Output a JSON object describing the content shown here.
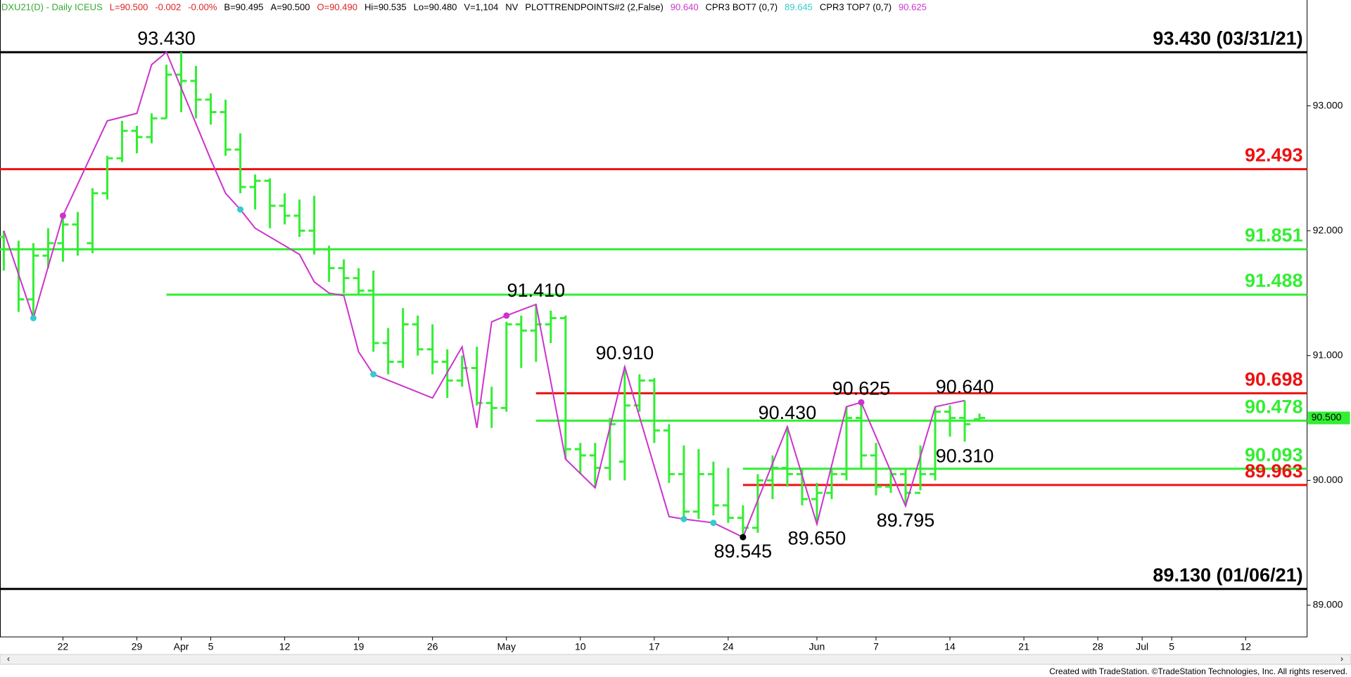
{
  "chart_data": {
    "type": "ohlc",
    "header": [
      {
        "text": "DXU21(D) - Daily  ICEUS",
        "color": "#33aa33"
      },
      {
        "text": "L=90.500",
        "color": "#dd2222"
      },
      {
        "text": "-0.002",
        "color": "#dd2222"
      },
      {
        "text": "-0.00%",
        "color": "#dd2222"
      },
      {
        "text": "B=90.495",
        "color": "#000000"
      },
      {
        "text": "A=90.500",
        "color": "#000000"
      },
      {
        "text": "O=90.490",
        "color": "#dd2222"
      },
      {
        "text": "Hi=90.535",
        "color": "#000000"
      },
      {
        "text": "Lo=90.480",
        "color": "#000000"
      },
      {
        "text": "V=1,104",
        "color": "#000000"
      },
      {
        "text": "NV",
        "color": "#000000"
      },
      {
        "text": "PLOTTRENDPOINTS#2 (2,False)",
        "color": "#000000"
      },
      {
        "text": "90.640",
        "color": "#cc33cc"
      },
      {
        "text": "CPR3 BOT7 (0,7)",
        "color": "#000000"
      },
      {
        "text": "89.645",
        "color": "#33cccc"
      },
      {
        "text": "CPR3 TOP7 (0,7)",
        "color": "#000000"
      },
      {
        "text": "90.625",
        "color": "#cc33cc"
      }
    ],
    "footer": "Created with TradeStation. ©TradeStation Technologies, Inc. All rights reserved.",
    "categories": [
      null,
      null,
      null,
      null,
      "22",
      null,
      null,
      null,
      null,
      "29",
      null,
      null,
      "Apr",
      null,
      "5",
      null,
      null,
      null,
      null,
      "12",
      null,
      null,
      null,
      null,
      "19",
      null,
      null,
      null,
      null,
      "26",
      null,
      null,
      null,
      null,
      "May",
      null,
      null,
      null,
      null,
      "10",
      null,
      null,
      null,
      null,
      "17",
      null,
      null,
      null,
      null,
      "24",
      null,
      null,
      null,
      null,
      null,
      "Jun",
      null,
      null,
      null,
      "7",
      null,
      null,
      null,
      null,
      "14",
      null,
      null,
      null,
      null,
      "21",
      null,
      null,
      null,
      null,
      "28",
      null,
      null,
      "Jul",
      null,
      "5",
      null,
      null,
      null,
      null,
      "12",
      null,
      null,
      null,
      null
    ],
    "open": [
      91.95,
      91.85,
      91.45,
      91.8,
      91.9,
      92.05,
      91.9,
      92.3,
      92.58,
      92.8,
      92.75,
      92.9,
      93.25,
      93.2,
      93.05,
      92.95,
      92.65,
      92.35,
      92.4,
      92.2,
      92.12,
      92.0,
      91.85,
      91.7,
      91.62,
      91.52,
      91.1,
      90.95,
      91.25,
      91.05,
      90.95,
      90.8,
      90.9,
      90.62,
      90.58,
      91.25,
      91.2,
      91.25,
      91.3,
      90.25,
      90.2,
      90.1,
      90.15,
      90.6,
      90.8,
      90.4,
      90.05,
      89.75,
      90.05,
      89.8,
      89.7,
      89.62,
      90.0,
      90.1,
      90.05,
      89.85,
      89.9,
      90.05,
      90.5,
      90.2,
      89.95,
      90.05,
      89.9,
      90.05,
      90.55,
      90.5,
      90.49,
      null,
      null,
      null,
      null,
      null,
      null,
      null,
      null,
      null,
      null,
      null,
      null,
      null,
      null,
      null,
      null,
      null,
      null,
      null,
      null,
      null,
      null
    ],
    "high": [
      92.0,
      91.92,
      91.9,
      92.02,
      92.12,
      92.15,
      92.34,
      92.6,
      92.88,
      92.84,
      92.94,
      93.33,
      93.43,
      93.32,
      93.1,
      93.05,
      92.78,
      92.45,
      92.42,
      92.3,
      92.25,
      92.28,
      91.88,
      91.77,
      91.7,
      91.68,
      91.22,
      91.38,
      91.32,
      91.25,
      91.05,
      91.0,
      91.07,
      90.75,
      91.27,
      91.32,
      91.41,
      91.36,
      91.32,
      90.3,
      90.3,
      90.5,
      90.91,
      90.85,
      90.82,
      90.45,
      90.28,
      90.25,
      90.15,
      90.1,
      89.8,
      90.05,
      90.2,
      90.43,
      90.1,
      89.98,
      90.1,
      90.59,
      90.625,
      90.3,
      90.1,
      90.1,
      90.28,
      90.59,
      90.6,
      90.64,
      90.535,
      null,
      null,
      null,
      null,
      null,
      null,
      null,
      null,
      null,
      null,
      null,
      null,
      null,
      null,
      null,
      null,
      null,
      null,
      null,
      null,
      null,
      null
    ],
    "low": [
      91.68,
      91.35,
      91.3,
      91.7,
      91.75,
      91.8,
      91.82,
      92.25,
      92.55,
      92.62,
      92.7,
      92.9,
      92.95,
      92.9,
      92.85,
      92.6,
      92.3,
      92.17,
      92.02,
      92.05,
      91.95,
      91.81,
      91.59,
      91.5,
      91.48,
      91.03,
      90.85,
      90.9,
      91.0,
      90.85,
      90.66,
      90.75,
      90.6,
      90.42,
      90.55,
      90.9,
      90.95,
      91.1,
      90.17,
      90.05,
      89.94,
      90.0,
      90.0,
      90.55,
      90.3,
      89.98,
      89.71,
      89.69,
      89.72,
      89.66,
      89.545,
      89.58,
      89.85,
      89.95,
      89.8,
      89.65,
      89.85,
      90.0,
      90.1,
      89.88,
      89.9,
      89.795,
      89.92,
      90.0,
      90.35,
      90.31,
      90.48,
      null,
      null,
      null,
      null,
      null,
      null,
      null,
      null,
      null,
      null,
      null,
      null,
      null,
      null,
      null,
      null,
      null,
      null,
      null,
      null,
      null,
      null
    ],
    "close": [
      91.85,
      91.45,
      91.8,
      91.9,
      92.05,
      91.85,
      92.3,
      92.58,
      92.8,
      92.75,
      92.9,
      93.25,
      93.2,
      93.05,
      92.95,
      92.65,
      92.35,
      92.4,
      92.2,
      92.12,
      92.0,
      91.85,
      91.7,
      91.62,
      91.52,
      91.1,
      90.95,
      91.25,
      91.05,
      90.95,
      90.8,
      90.9,
      90.62,
      90.58,
      91.25,
      91.2,
      91.25,
      91.3,
      90.25,
      90.2,
      90.1,
      90.45,
      90.6,
      90.8,
      90.4,
      90.05,
      89.75,
      90.05,
      89.8,
      89.7,
      89.62,
      90.0,
      90.1,
      90.05,
      89.85,
      89.9,
      90.05,
      90.5,
      90.2,
      89.95,
      90.05,
      89.9,
      90.05,
      90.55,
      90.5,
      90.45,
      90.5,
      null,
      null,
      null,
      null,
      null,
      null,
      null,
      null,
      null,
      null,
      null,
      null,
      null,
      null,
      null,
      null,
      null,
      null,
      null,
      null,
      null,
      null
    ],
    "color": "#33ee33",
    "ylim": [
      88.746,
      93.848
    ],
    "yticks": [
      {
        "value": 89,
        "label": "89.000"
      },
      {
        "value": 90,
        "label": "90.000"
      },
      {
        "value": 91,
        "label": "91.000"
      },
      {
        "value": 92,
        "label": "92.000"
      },
      {
        "value": 93,
        "label": "93.000"
      }
    ],
    "last_price": {
      "value": 90.5,
      "label": "90.500",
      "color": "#33ee33"
    },
    "levels": [
      {
        "value": 93.43,
        "label": "93.430 (03/31/21)",
        "color": "#000000",
        "from": 0
      },
      {
        "value": 92.493,
        "label": "92.493",
        "color": "#ee1111",
        "from": 0
      },
      {
        "value": 91.851,
        "label": "91.851",
        "color": "#33ee33",
        "from": 0
      },
      {
        "value": 91.488,
        "label": "91.488",
        "color": "#33ee33",
        "from": 11
      },
      {
        "value": 90.698,
        "label": "90.698",
        "color": "#ee1111",
        "from": 36
      },
      {
        "value": 90.478,
        "label": "90.478",
        "color": "#33ee33",
        "from": 36
      },
      {
        "value": 90.093,
        "label": "90.093",
        "color": "#33ee33",
        "from": 50
      },
      {
        "value": 89.963,
        "label": "89.963",
        "color": "#ee1111",
        "from": 50
      },
      {
        "value": 89.13,
        "label": "89.130 (01/06/21)",
        "color": "#000000",
        "from": 0
      }
    ],
    "trendline": {
      "color": "#cc33cc",
      "x": [
        0,
        2,
        4,
        7,
        9,
        10,
        11,
        14,
        15,
        16,
        17,
        20,
        21,
        22,
        23,
        24,
        25,
        29,
        31,
        32,
        33,
        34,
        36,
        38,
        40,
        42,
        45,
        46,
        48,
        50,
        53,
        55,
        57,
        58,
        61,
        63,
        65
      ],
      "values": [
        92.0,
        91.3,
        92.12,
        92.88,
        92.94,
        93.33,
        93.43,
        92.57,
        92.3,
        92.17,
        92.02,
        91.81,
        91.59,
        91.5,
        91.48,
        91.03,
        90.85,
        90.66,
        91.07,
        90.42,
        91.27,
        91.32,
        91.41,
        90.17,
        89.94,
        90.91,
        89.71,
        89.69,
        89.66,
        89.545,
        90.43,
        89.65,
        90.59,
        90.625,
        89.795,
        90.59,
        90.64
      ],
      "markers": [
        null,
        "#33cccc",
        "#cc33cc",
        null,
        null,
        null,
        null,
        null,
        null,
        "#33cccc",
        null,
        null,
        null,
        null,
        null,
        null,
        "#33cccc",
        null,
        null,
        null,
        null,
        "#cc33cc",
        null,
        null,
        null,
        null,
        null,
        "#33cccc",
        "#33cccc",
        "#000000",
        null,
        null,
        null,
        "#cc33cc",
        null,
        null,
        null
      ]
    },
    "annotations": [
      {
        "x": 11,
        "value": 93.43,
        "label": "93.430"
      },
      {
        "x": 36,
        "value": 91.41,
        "label": "91.410"
      },
      {
        "x": 42,
        "value": 90.91,
        "label": "90.910"
      },
      {
        "x": 50,
        "value": 89.545,
        "label": "89.545"
      },
      {
        "x": 53,
        "value": 90.43,
        "label": "90.430"
      },
      {
        "x": 55,
        "value": 89.65,
        "label": "89.650"
      },
      {
        "x": 58,
        "value": 90.625,
        "label": "90.625"
      },
      {
        "x": 61,
        "value": 89.795,
        "label": "89.795"
      },
      {
        "x": 65,
        "value": 90.64,
        "label": "90.640"
      },
      {
        "x": 65,
        "value": 90.31,
        "label": "90.310"
      }
    ]
  }
}
